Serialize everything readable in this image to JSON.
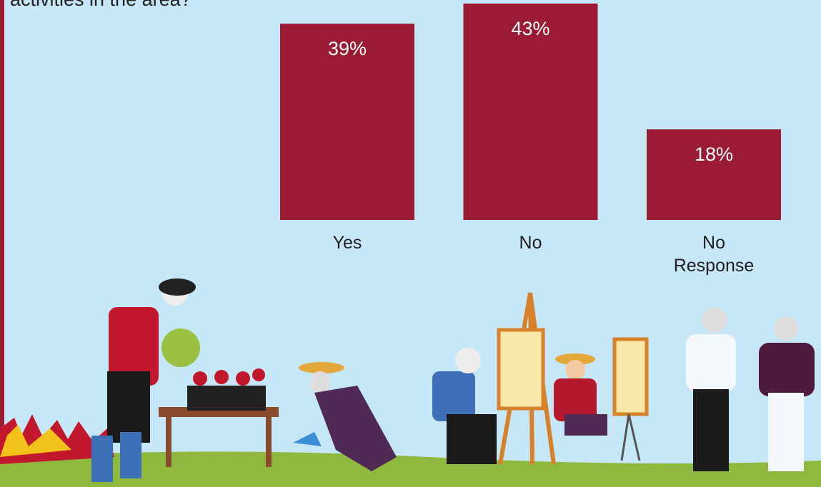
{
  "chart_data": {
    "type": "bar",
    "title": "activities in the area?",
    "categories": [
      "Yes",
      "No",
      "No Response"
    ],
    "values": [
      39,
      43,
      18
    ],
    "value_labels": [
      "39%",
      "43%",
      "18%"
    ],
    "color": "#9b1b35"
  }
}
